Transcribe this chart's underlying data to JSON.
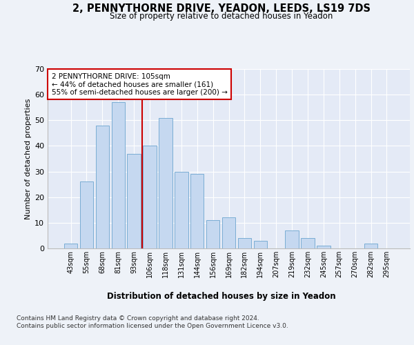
{
  "title1": "2, PENNYTHORNE DRIVE, YEADON, LEEDS, LS19 7DS",
  "title2": "Size of property relative to detached houses in Yeadon",
  "xlabel": "Distribution of detached houses by size in Yeadon",
  "ylabel": "Number of detached properties",
  "categories": [
    "43sqm",
    "55sqm",
    "68sqm",
    "81sqm",
    "93sqm",
    "106sqm",
    "118sqm",
    "131sqm",
    "144sqm",
    "156sqm",
    "169sqm",
    "182sqm",
    "194sqm",
    "207sqm",
    "219sqm",
    "232sqm",
    "245sqm",
    "257sqm",
    "270sqm",
    "282sqm",
    "295sqm"
  ],
  "values": [
    2,
    26,
    48,
    57,
    37,
    40,
    51,
    30,
    29,
    11,
    12,
    4,
    3,
    0,
    7,
    4,
    1,
    0,
    0,
    2,
    0
  ],
  "bar_color": "#c5d8f0",
  "bar_edge_color": "#7aadd4",
  "vline_idx": 5,
  "vline_color": "#cc0000",
  "annotation_lines": [
    "2 PENNYTHORNE DRIVE: 105sqm",
    "← 44% of detached houses are smaller (161)",
    "55% of semi-detached houses are larger (200) →"
  ],
  "annotation_box_color": "#cc0000",
  "ylim": [
    0,
    70
  ],
  "yticks": [
    0,
    10,
    20,
    30,
    40,
    50,
    60,
    70
  ],
  "footer": "Contains HM Land Registry data © Crown copyright and database right 2024.\nContains public sector information licensed under the Open Government Licence v3.0.",
  "bg_color": "#eef2f8",
  "plot_bg_color": "#e4eaf6"
}
